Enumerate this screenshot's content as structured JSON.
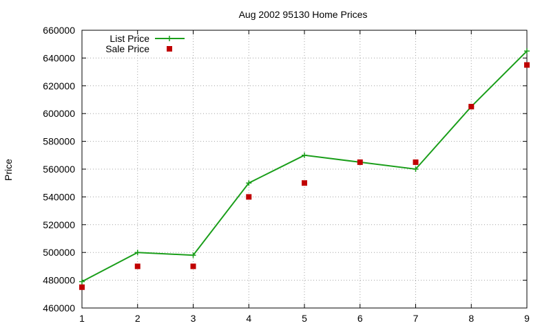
{
  "chart_data": {
    "type": "line",
    "title": "Aug 2002 95130 Home Prices",
    "xlabel": "",
    "ylabel": "Price",
    "x": [
      1,
      2,
      3,
      4,
      5,
      6,
      7,
      8,
      9
    ],
    "xlim": [
      1,
      9
    ],
    "ylim": [
      460000,
      660000
    ],
    "xticks": [
      "1",
      "2",
      "3",
      "4",
      "5",
      "6",
      "7",
      "8",
      "9"
    ],
    "yticks": [
      "460000",
      "480000",
      "500000",
      "520000",
      "540000",
      "560000",
      "580000",
      "600000",
      "620000",
      "640000",
      "660000"
    ],
    "grid": true,
    "legend_position": "top-left",
    "series": [
      {
        "name": "List Price",
        "style": "linespoints",
        "marker": "plus",
        "color": "#1a9e1a",
        "values": [
          479000,
          500000,
          498000,
          550000,
          570000,
          565000,
          560000,
          605000,
          645000
        ]
      },
      {
        "name": "Sale Price",
        "style": "points",
        "marker": "square",
        "color": "#c00000",
        "values": [
          475000,
          490000,
          490000,
          540000,
          550000,
          565000,
          565000,
          605000,
          635000
        ]
      }
    ]
  }
}
